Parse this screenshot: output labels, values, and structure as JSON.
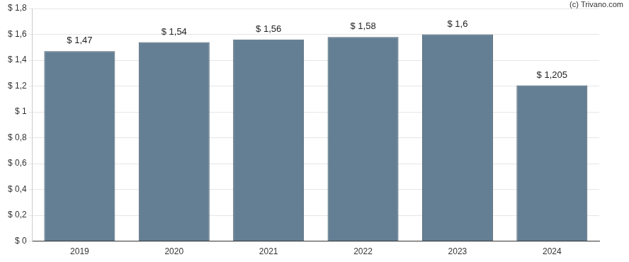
{
  "chart_data": {
    "type": "bar",
    "annotations": [
      "(c) Trivano.com"
    ],
    "categories": [
      "2019",
      "2020",
      "2021",
      "2022",
      "2023",
      "2024"
    ],
    "values": [
      1.47,
      1.54,
      1.56,
      1.58,
      1.6,
      1.205
    ],
    "value_labels": [
      "$ 1,47",
      "$ 1,54",
      "$ 1,56",
      "$ 1,58",
      "$ 1,6",
      "$ 1,205"
    ],
    "color": "#647f94",
    "ylim": [
      0,
      1.8
    ],
    "yticks": [
      {
        "value": 0,
        "label": "$ 0"
      },
      {
        "value": 0.2,
        "label": "$ 0,2"
      },
      {
        "value": 0.4,
        "label": "$ 0,4"
      },
      {
        "value": 0.6,
        "label": "$ 0,6"
      },
      {
        "value": 0.8,
        "label": "$ 0,8"
      },
      {
        "value": 1,
        "label": "$ 1"
      },
      {
        "value": 1.2,
        "label": "$ 1,2"
      },
      {
        "value": 1.4,
        "label": "$ 1,4"
      },
      {
        "value": 1.6,
        "label": "$ 1,6"
      },
      {
        "value": 1.8,
        "label": "$ 1,8"
      }
    ],
    "grid": true,
    "data_labels": true
  }
}
